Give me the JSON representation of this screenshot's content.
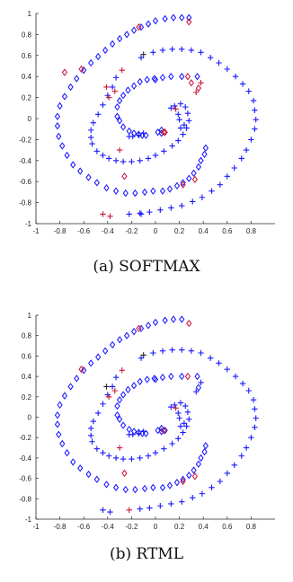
{
  "colors": {
    "blue": "#1a1aff",
    "red": "#cc1a3a",
    "axis": "#262626"
  },
  "markers": {
    "diamond": "diamond-marker",
    "plus": "plus-marker"
  },
  "chart_data": [
    {
      "type": "scatter",
      "title": "",
      "caption": "(a) SOFTMAX",
      "xlabel": "",
      "ylabel": "",
      "xlim": [
        -1,
        1
      ],
      "ylim": [
        -1,
        1
      ],
      "xticks": [
        "-1",
        "-0.8",
        "-0.6",
        "-0.4",
        "-0.2",
        "0",
        "0.2",
        "0.4",
        "0.6",
        "0.8"
      ],
      "xtick_values": [
        -1,
        -0.8,
        -0.6,
        -0.4,
        -0.2,
        0,
        0.2,
        0.4,
        0.6,
        0.8
      ],
      "yticks": [
        "1",
        "0.8",
        "0.6",
        "0.4",
        "0.2",
        "0",
        "-0.2",
        "-0.4",
        "-0.6",
        "-0.8",
        "-1"
      ],
      "ytick_values": [
        1,
        0.8,
        0.6,
        0.4,
        0.2,
        0,
        -0.2,
        -0.4,
        -0.6,
        -0.8,
        -1
      ],
      "grid": false,
      "series": [
        {
          "marker": "diamond",
          "color_key": "blue",
          "x": [
            0.28,
            0.22,
            0.15,
            0.08,
            0.0,
            -0.06,
            -0.12,
            -0.18,
            -0.24,
            -0.3,
            -0.36,
            -0.42,
            -0.48,
            -0.54,
            -0.6,
            -0.66,
            -0.71,
            -0.76,
            -0.8,
            -0.82,
            -0.82,
            -0.81,
            -0.78,
            -0.74,
            -0.69,
            -0.63,
            -0.56,
            -0.49,
            -0.41,
            -0.33,
            -0.25,
            -0.17,
            -0.09,
            -0.02,
            0.06,
            0.12,
            0.18,
            0.23,
            0.28,
            0.32,
            0.36,
            0.38,
            0.41,
            0.42,
            0.35,
            0.22,
            0.13,
            0.06,
            -0.01,
            -0.07,
            -0.13,
            -0.18,
            -0.23,
            -0.27,
            -0.3,
            -0.32,
            -0.32,
            -0.3,
            -0.27,
            -0.22,
            -0.18,
            -0.14,
            -0.11,
            -0.08,
            0.05,
            0.0,
            0.02,
            0.05
          ],
          "y": [
            0.96,
            0.96,
            0.96,
            0.95,
            0.93,
            0.9,
            0.87,
            0.84,
            0.8,
            0.76,
            0.71,
            0.65,
            0.59,
            0.53,
            0.46,
            0.38,
            0.3,
            0.21,
            0.12,
            0.02,
            -0.07,
            -0.17,
            -0.26,
            -0.35,
            -0.44,
            -0.5,
            -0.56,
            -0.61,
            -0.66,
            -0.69,
            -0.71,
            -0.71,
            -0.7,
            -0.69,
            -0.69,
            -0.67,
            -0.64,
            -0.61,
            -0.57,
            -0.52,
            -0.46,
            -0.4,
            -0.34,
            -0.28,
            0.4,
            0.4,
            0.4,
            0.39,
            0.38,
            0.37,
            0.35,
            0.31,
            0.27,
            0.22,
            0.17,
            0.11,
            0.02,
            -0.02,
            -0.08,
            -0.12,
            -0.14,
            -0.15,
            -0.16,
            -0.16,
            -0.11,
            0.37,
            -0.13,
            -0.14
          ]
        },
        {
          "marker": "diamond",
          "color_key": "red",
          "x": [
            0.28,
            -0.14,
            -0.62,
            -0.76,
            0.33,
            0.23,
            0.27,
            0.3,
            0.08,
            0.07,
            -0.26,
            0.36
          ],
          "y": [
            0.92,
            0.87,
            0.47,
            0.44,
            -0.58,
            -0.63,
            0.4,
            0.34,
            -0.13,
            -0.13,
            -0.55,
            0.29
          ]
        },
        {
          "marker": "plus",
          "color_key": "blue",
          "x": [
            -0.12,
            -0.02,
            0.06,
            0.14,
            0.22,
            0.3,
            0.38,
            0.46,
            0.53,
            0.6,
            0.67,
            0.73,
            0.78,
            0.82,
            0.83,
            0.84,
            0.83,
            0.8,
            0.76,
            0.72,
            0.66,
            0.6,
            0.54,
            0.47,
            0.39,
            0.31,
            0.22,
            0.13,
            0.04,
            -0.05,
            -0.13,
            -0.22,
            -0.33,
            -0.36,
            -0.4,
            -0.44,
            -0.48,
            -0.52,
            -0.54,
            -0.54,
            -0.53,
            -0.49,
            -0.44,
            -0.39,
            -0.33,
            -0.27,
            -0.2,
            -0.13,
            -0.06,
            0.0,
            0.07,
            0.14,
            0.19,
            0.23,
            0.26,
            0.28,
            0.27,
            0.25,
            0.21,
            0.16,
            0.13,
            0.19,
            0.24,
            0.21,
            0.2,
            -0.12,
            -0.1,
            -0.14,
            -0.19,
            -0.22
          ],
          "y": [
            0.58,
            0.63,
            0.65,
            0.66,
            0.66,
            0.65,
            0.63,
            0.58,
            0.53,
            0.47,
            0.4,
            0.33,
            0.26,
            0.17,
            0.08,
            -0.01,
            -0.1,
            -0.2,
            -0.3,
            -0.38,
            -0.47,
            -0.55,
            -0.63,
            -0.69,
            -0.75,
            -0.79,
            -0.83,
            -0.85,
            -0.87,
            -0.89,
            -0.9,
            -0.91,
            0.39,
            0.3,
            0.22,
            0.13,
            0.04,
            -0.04,
            -0.11,
            -0.18,
            -0.24,
            -0.31,
            -0.35,
            -0.38,
            -0.4,
            -0.41,
            -0.41,
            -0.4,
            -0.38,
            -0.35,
            -0.31,
            -0.26,
            -0.21,
            -0.15,
            -0.09,
            -0.02,
            0.05,
            0.11,
            0.14,
            0.12,
            0.1,
            0.04,
            -0.06,
            -0.09,
            -0.01,
            -0.91,
            -0.14,
            -0.16,
            -0.17,
            -0.17
          ]
        },
        {
          "marker": "plus",
          "color_key": "red",
          "x": [
            0.38,
            0.34,
            -0.28,
            -0.34,
            -0.39,
            -0.41,
            -0.3,
            -0.44,
            -0.38,
            0.17
          ],
          "y": [
            0.34,
            0.25,
            0.46,
            0.26,
            0.2,
            0.3,
            -0.3,
            -0.91,
            -0.93,
            0.09
          ]
        },
        {
          "marker": "plus",
          "color_key": "axis",
          "x": [
            -0.1
          ],
          "y": [
            0.61
          ]
        }
      ]
    },
    {
      "type": "scatter",
      "title": "",
      "caption": "(b) RTML",
      "xlabel": "",
      "ylabel": "",
      "xlim": [
        -1,
        1
      ],
      "ylim": [
        -1,
        1
      ],
      "xticks": [
        "-1",
        "-0.8",
        "-0.6",
        "-0.4",
        "-0.2",
        "0",
        "0.2",
        "0.4",
        "0.6",
        "0.8"
      ],
      "xtick_values": [
        -1,
        -0.8,
        -0.6,
        -0.4,
        -0.2,
        0,
        0.2,
        0.4,
        0.6,
        0.8
      ],
      "yticks": [
        "1",
        "0.8",
        "0.6",
        "0.4",
        "0.2",
        "0",
        "-0.2",
        "-0.4",
        "-0.6",
        "-0.8",
        "-1"
      ],
      "ytick_values": [
        1,
        0.8,
        0.6,
        0.4,
        0.2,
        0,
        -0.2,
        -0.4,
        -0.6,
        -0.8,
        -1
      ],
      "grid": false,
      "series": [
        {
          "marker": "diamond",
          "color_key": "blue",
          "x": [
            0.22,
            0.15,
            0.08,
            0.0,
            -0.06,
            -0.12,
            -0.18,
            -0.24,
            -0.3,
            -0.36,
            -0.42,
            -0.48,
            -0.54,
            -0.6,
            -0.66,
            -0.71,
            -0.76,
            -0.8,
            -0.82,
            -0.82,
            -0.81,
            -0.78,
            -0.74,
            -0.69,
            -0.63,
            -0.56,
            -0.49,
            -0.41,
            -0.33,
            -0.25,
            -0.17,
            -0.09,
            -0.02,
            0.06,
            0.12,
            0.18,
            0.23,
            0.28,
            0.32,
            0.36,
            0.38,
            0.41,
            0.42,
            0.35,
            0.22,
            0.13,
            0.06,
            -0.01,
            -0.07,
            -0.13,
            -0.18,
            -0.23,
            -0.27,
            -0.3,
            -0.32,
            -0.32,
            -0.3,
            -0.27,
            -0.22,
            -0.18,
            -0.14,
            -0.11,
            -0.08,
            0.05,
            0.0,
            0.02,
            0.05,
            0.36,
            0.08
          ],
          "y": [
            0.96,
            0.96,
            0.95,
            0.93,
            0.9,
            0.87,
            0.84,
            0.8,
            0.76,
            0.71,
            0.65,
            0.59,
            0.53,
            0.46,
            0.38,
            0.3,
            0.21,
            0.12,
            0.02,
            -0.07,
            -0.17,
            -0.26,
            -0.35,
            -0.44,
            -0.5,
            -0.56,
            -0.61,
            -0.66,
            -0.69,
            -0.71,
            -0.71,
            -0.7,
            -0.69,
            -0.69,
            -0.67,
            -0.64,
            -0.61,
            -0.57,
            -0.52,
            -0.46,
            -0.4,
            -0.34,
            -0.28,
            0.4,
            0.4,
            0.4,
            0.39,
            0.38,
            0.37,
            0.35,
            0.31,
            0.27,
            0.22,
            0.17,
            0.11,
            0.02,
            -0.02,
            -0.08,
            -0.12,
            -0.14,
            -0.15,
            -0.16,
            -0.16,
            -0.11,
            0.37,
            -0.13,
            -0.14,
            0.29,
            -0.13
          ]
        },
        {
          "marker": "diamond",
          "color_key": "red",
          "x": [
            0.28,
            -0.14,
            -0.62,
            0.33,
            0.23,
            -0.26,
            0.27,
            0.07
          ],
          "y": [
            0.92,
            0.87,
            0.47,
            -0.58,
            -0.63,
            -0.55,
            0.4,
            -0.13
          ]
        },
        {
          "marker": "plus",
          "color_key": "blue",
          "x": [
            -0.12,
            -0.02,
            0.06,
            0.14,
            0.22,
            0.3,
            0.38,
            0.46,
            0.53,
            0.6,
            0.67,
            0.73,
            0.78,
            0.82,
            0.83,
            0.84,
            0.83,
            0.8,
            0.76,
            0.72,
            0.66,
            0.6,
            0.54,
            0.47,
            0.39,
            0.31,
            0.22,
            0.13,
            0.04,
            -0.05,
            -0.13,
            -0.33,
            -0.36,
            -0.4,
            -0.44,
            -0.48,
            -0.52,
            -0.54,
            -0.54,
            -0.53,
            -0.49,
            -0.44,
            -0.39,
            -0.33,
            -0.27,
            -0.2,
            -0.13,
            -0.06,
            0.0,
            0.07,
            0.14,
            0.19,
            0.23,
            0.26,
            0.28,
            0.27,
            0.25,
            0.21,
            0.16,
            0.13,
            0.19,
            0.24,
            0.21,
            0.2,
            -0.1,
            -0.14,
            -0.19,
            -0.22,
            -0.44,
            -0.38,
            0.38,
            0.34
          ],
          "y": [
            0.58,
            0.63,
            0.65,
            0.66,
            0.66,
            0.65,
            0.63,
            0.58,
            0.53,
            0.47,
            0.4,
            0.33,
            0.26,
            0.17,
            0.08,
            -0.01,
            -0.1,
            -0.2,
            -0.3,
            -0.38,
            -0.47,
            -0.55,
            -0.63,
            -0.69,
            -0.75,
            -0.79,
            -0.83,
            -0.85,
            -0.87,
            -0.89,
            -0.9,
            0.39,
            0.3,
            0.22,
            0.13,
            0.04,
            -0.04,
            -0.11,
            -0.18,
            -0.24,
            -0.31,
            -0.35,
            -0.38,
            -0.4,
            -0.41,
            -0.41,
            -0.4,
            -0.38,
            -0.35,
            -0.31,
            -0.26,
            -0.21,
            -0.15,
            -0.09,
            -0.02,
            0.05,
            0.11,
            0.14,
            0.12,
            0.1,
            0.04,
            -0.06,
            -0.09,
            -0.01,
            -0.14,
            -0.16,
            -0.17,
            -0.17,
            -0.91,
            -0.93,
            0.34,
            0.25
          ]
        },
        {
          "marker": "plus",
          "color_key": "red",
          "x": [
            -0.34,
            -0.39,
            -0.3,
            -0.22,
            0.17,
            -0.28
          ],
          "y": [
            0.26,
            0.2,
            -0.3,
            -0.91,
            0.09,
            0.46
          ]
        },
        {
          "marker": "plus",
          "color_key": "axis",
          "x": [
            -0.1,
            -0.41
          ],
          "y": [
            0.61,
            0.3
          ]
        }
      ]
    }
  ]
}
